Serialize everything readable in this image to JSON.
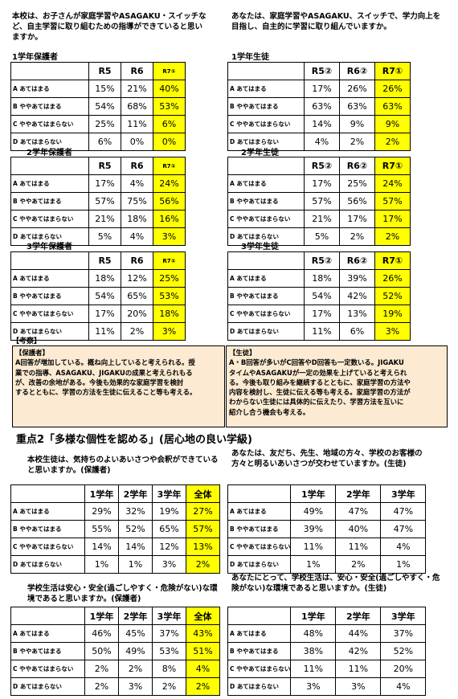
{
  "section1": {
    "q_parent": "本校は、お子さんが家庭学習やASAGAKU・スイッチなど、自主学習に取り組むための指導ができていると思いますか。",
    "q_student": "あなたは、家庭学習やASAGAKU、スイッチで、学力向上を目指し、自主的に学習に取り組んでいますか。",
    "row_labels": [
      "A あてはまる",
      "B ややあてはまる",
      "C ややあてはまらない",
      "D あてはまらない"
    ],
    "parents": [
      {
        "title": "1学年保護者",
        "headers": [
          "R5",
          "R6",
          "R7①"
        ],
        "rows": [
          [
            "15%",
            "21%",
            "40%"
          ],
          [
            "54%",
            "68%",
            "53%"
          ],
          [
            "25%",
            "11%",
            "6%"
          ],
          [
            "6%",
            "0%",
            "0%"
          ]
        ]
      },
      {
        "title": "2学年保護者",
        "headers": [
          "R5",
          "R6",
          "R7①"
        ],
        "rows": [
          [
            "17%",
            "4%",
            "24%"
          ],
          [
            "57%",
            "75%",
            "56%"
          ],
          [
            "21%",
            "18%",
            "16%"
          ],
          [
            "5%",
            "4%",
            "3%"
          ]
        ]
      },
      {
        "title": "3学年保護者",
        "headers": [
          "R5",
          "R6",
          "R7①"
        ],
        "rows": [
          [
            "18%",
            "12%",
            "25%"
          ],
          [
            "54%",
            "65%",
            "53%"
          ],
          [
            "17%",
            "20%",
            "18%"
          ],
          [
            "11%",
            "2%",
            "3%"
          ]
        ]
      }
    ],
    "students": [
      {
        "title": "1学年生徒",
        "headers": [
          "R5②",
          "R6②",
          "R7①"
        ],
        "rows": [
          [
            "17%",
            "26%",
            "26%"
          ],
          [
            "63%",
            "63%",
            "63%"
          ],
          [
            "14%",
            "9%",
            "9%"
          ],
          [
            "4%",
            "2%",
            "2%"
          ]
        ]
      },
      {
        "title": "2学年生徒",
        "headers": [
          "R5②",
          "R6②",
          "R7①"
        ],
        "rows": [
          [
            "17%",
            "25%",
            "24%"
          ],
          [
            "57%",
            "56%",
            "57%"
          ],
          [
            "21%",
            "17%",
            "17%"
          ],
          [
            "5%",
            "2%",
            "2%"
          ]
        ]
      },
      {
        "title": "3学年生徒",
        "headers": [
          "R5②",
          "R6②",
          "R7①"
        ],
        "rows": [
          [
            "18%",
            "39%",
            "26%"
          ],
          [
            "54%",
            "42%",
            "52%"
          ],
          [
            "17%",
            "13%",
            "19%"
          ],
          [
            "11%",
            "6%",
            "3%"
          ]
        ]
      }
    ]
  },
  "consider": {
    "label": "【考察】",
    "parent_head": "【保護者】",
    "parent_lines": [
      "A回答が増加している。概ね向上していると考えられる。授",
      "業での指導、ASAGAKU、JIGAKUの成果と考えられもる",
      "が、改善の余地がある。今後も効果的な家庭学習を検討",
      "するとともに、学習の方法を生徒に伝えること等も考える。"
    ],
    "student_head": "【生徒】",
    "student_lines": [
      "A・B回答が多いがC回答やD回答も一定数いる。JIGAKU",
      "タイムやASAGAKUが一定の効果を上げていると考えられ",
      "る。今後も取り組みを継続するとともに、家庭学習の方法や",
      "内容を検討し、生徒に伝える等も考える。家庭学習の方法が",
      "わからない生徒には具体的に伝えたり、学習方法を互いに",
      "紹介し合う機会も考える。"
    ]
  },
  "section2": {
    "heading": "重点2「多様な個性を認める」(居心地の良い学級)",
    "row_labels": [
      "A あてはまる",
      "B ややあてはまる",
      "C ややあてはまらない",
      "D あてはまらない"
    ],
    "greet_parent": {
      "q": "本校生徒は、気持ちのよいあいさつや会釈ができていると思いますか。(保護者)",
      "headers": [
        "1学年",
        "2学年",
        "3学年",
        "全体"
      ],
      "rows": [
        [
          "29%",
          "32%",
          "19%",
          "27%"
        ],
        [
          "55%",
          "52%",
          "65%",
          "57%"
        ],
        [
          "14%",
          "14%",
          "12%",
          "13%"
        ],
        [
          "1%",
          "1%",
          "3%",
          "2%"
        ]
      ]
    },
    "greet_student": {
      "q": "あなたは、友だち、先生、地域の方々、学校のお客様の方々と明るいあいさつが交わせていますか。(生徒)",
      "headers": [
        "1学年",
        "2学年",
        "3学年"
      ],
      "rows": [
        [
          "49%",
          "47%",
          "47%"
        ],
        [
          "39%",
          "40%",
          "47%"
        ],
        [
          "11%",
          "11%",
          "4%"
        ],
        [
          "1%",
          "2%",
          "1%"
        ]
      ]
    },
    "safe_parent": {
      "q": "学校生活は安心・安全(過ごしやすく・危険がない)な環境であると思いますか。(保護者)",
      "headers": [
        "1学年",
        "2学年",
        "3学年",
        "全体"
      ],
      "rows": [
        [
          "46%",
          "45%",
          "37%",
          "43%"
        ],
        [
          "50%",
          "49%",
          "53%",
          "51%"
        ],
        [
          "2%",
          "2%",
          "8%",
          "4%"
        ],
        [
          "2%",
          "3%",
          "2%",
          "2%"
        ]
      ]
    },
    "safe_student": {
      "q": "あなたにとって、学校生活は、安心・安全(過ごしやすく・危険がない)な環境であると思いますか。(生徒)",
      "headers": [
        "1学年",
        "2学年",
        "3学年"
      ],
      "rows": [
        [
          "48%",
          "44%",
          "37%"
        ],
        [
          "38%",
          "42%",
          "52%"
        ],
        [
          "11%",
          "11%",
          "20%"
        ],
        [
          "3%",
          "3%",
          "4%"
        ]
      ]
    }
  },
  "colors": {
    "highlight": "#ffff00",
    "consider_bg": "#fcebd2"
  }
}
